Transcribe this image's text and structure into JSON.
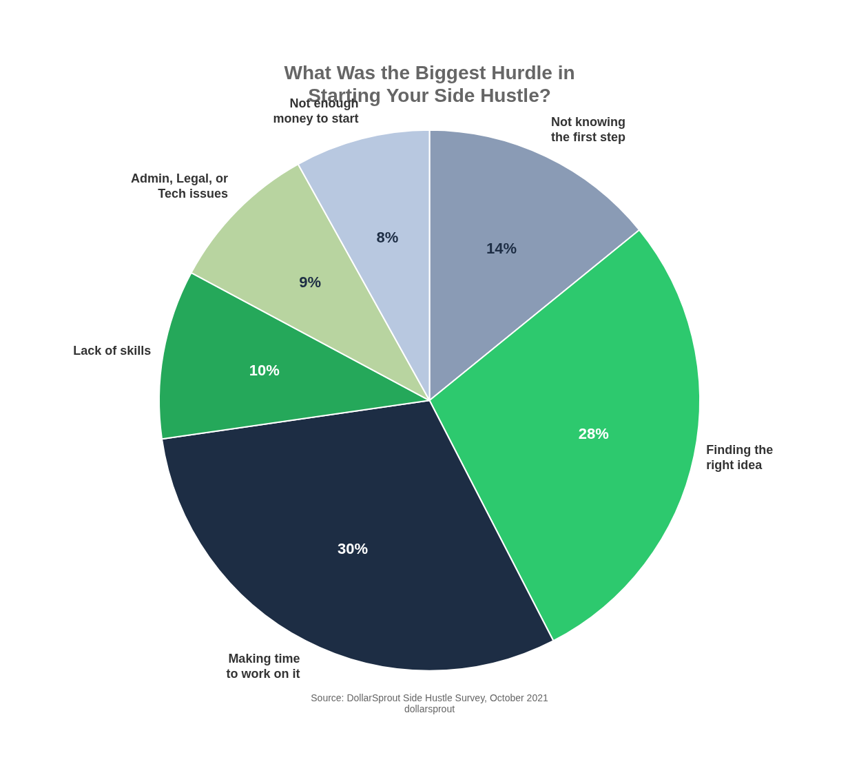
{
  "chart_data": {
    "type": "pie",
    "title": "What Was the Biggest Hurdle in\nStarting Your Side Hustle?",
    "categories": [
      "Not knowing\nthe first step",
      "Finding the\nright idea",
      "Making time\nto work on it",
      "Lack of skills",
      "Admin, Legal, or\nTech issues",
      "Not enough\nmoney to start"
    ],
    "values": [
      14,
      28,
      30,
      10,
      9,
      8
    ],
    "value_labels": [
      "14%",
      "28%",
      "30%",
      "10%",
      "9%",
      "8%"
    ],
    "colors": [
      "#8a9bb5",
      "#2dc96e",
      "#1d2d44",
      "#25a85a",
      "#b8d4a0",
      "#b8c8e0"
    ],
    "data_labels": true,
    "annotations": [
      "Source: DollarSprout Side Hustle Survey, October 2021",
      "dollarsprout"
    ]
  }
}
